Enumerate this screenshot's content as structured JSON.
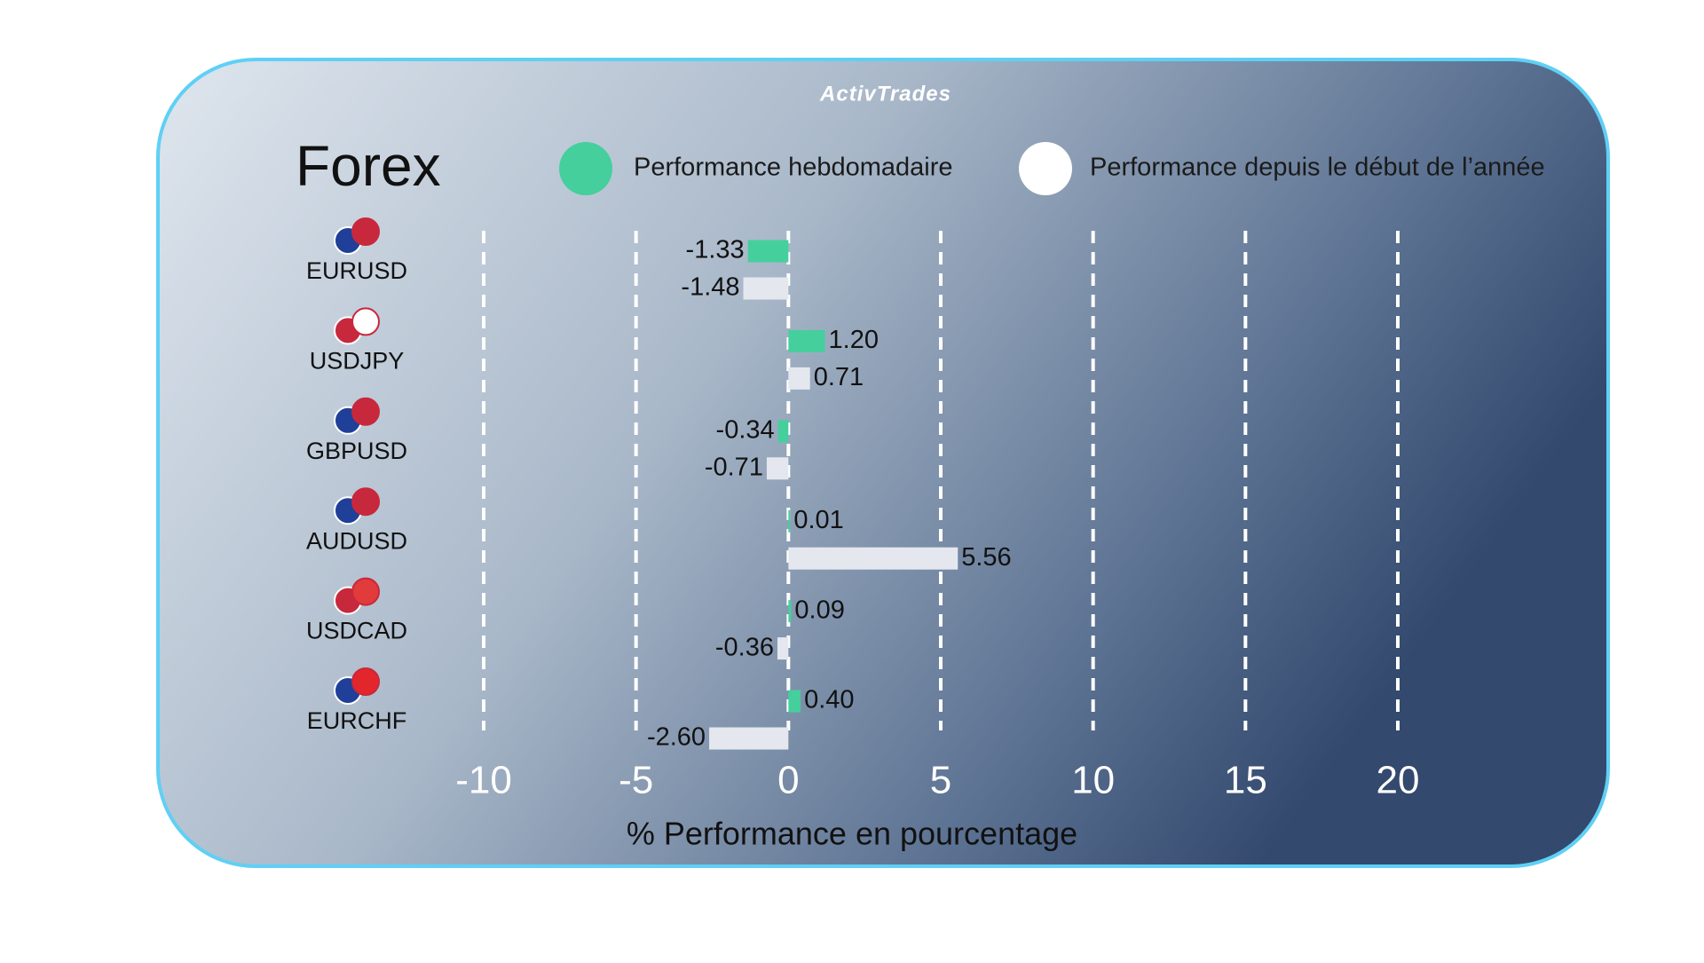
{
  "chart_data": {
    "type": "hbar",
    "brand": "ActivTrades",
    "title": "Forex",
    "x_label": "% Performance en pourcentage",
    "categories": [
      "EURUSD",
      "USDJPY",
      "GBPUSD",
      "AUDUSD",
      "USDCAD",
      "EURCHF"
    ],
    "series": [
      {
        "name": "Performance hebdomadaire",
        "color": "#45cf9c",
        "values": [
          -1.33,
          1.2,
          -0.34,
          0.01,
          0.09,
          0.4
        ],
        "value_labels": [
          "-1.33",
          "1.20",
          "-0.34",
          "0.01",
          "0.09",
          "0.40"
        ]
      },
      {
        "name": "Performance depuis le début de l’année",
        "color": "#e4e8ee",
        "values": [
          -1.48,
          0.71,
          -0.71,
          5.56,
          -0.36,
          -2.6
        ],
        "value_labels": [
          "-1.48",
          "0.71",
          "-0.71",
          "5.56",
          "-0.36",
          "-2.60"
        ]
      }
    ],
    "xlim": [
      -10,
      20
    ],
    "xticks": [
      -10,
      -5,
      0,
      5,
      10,
      15,
      20
    ],
    "grid": true
  }
}
